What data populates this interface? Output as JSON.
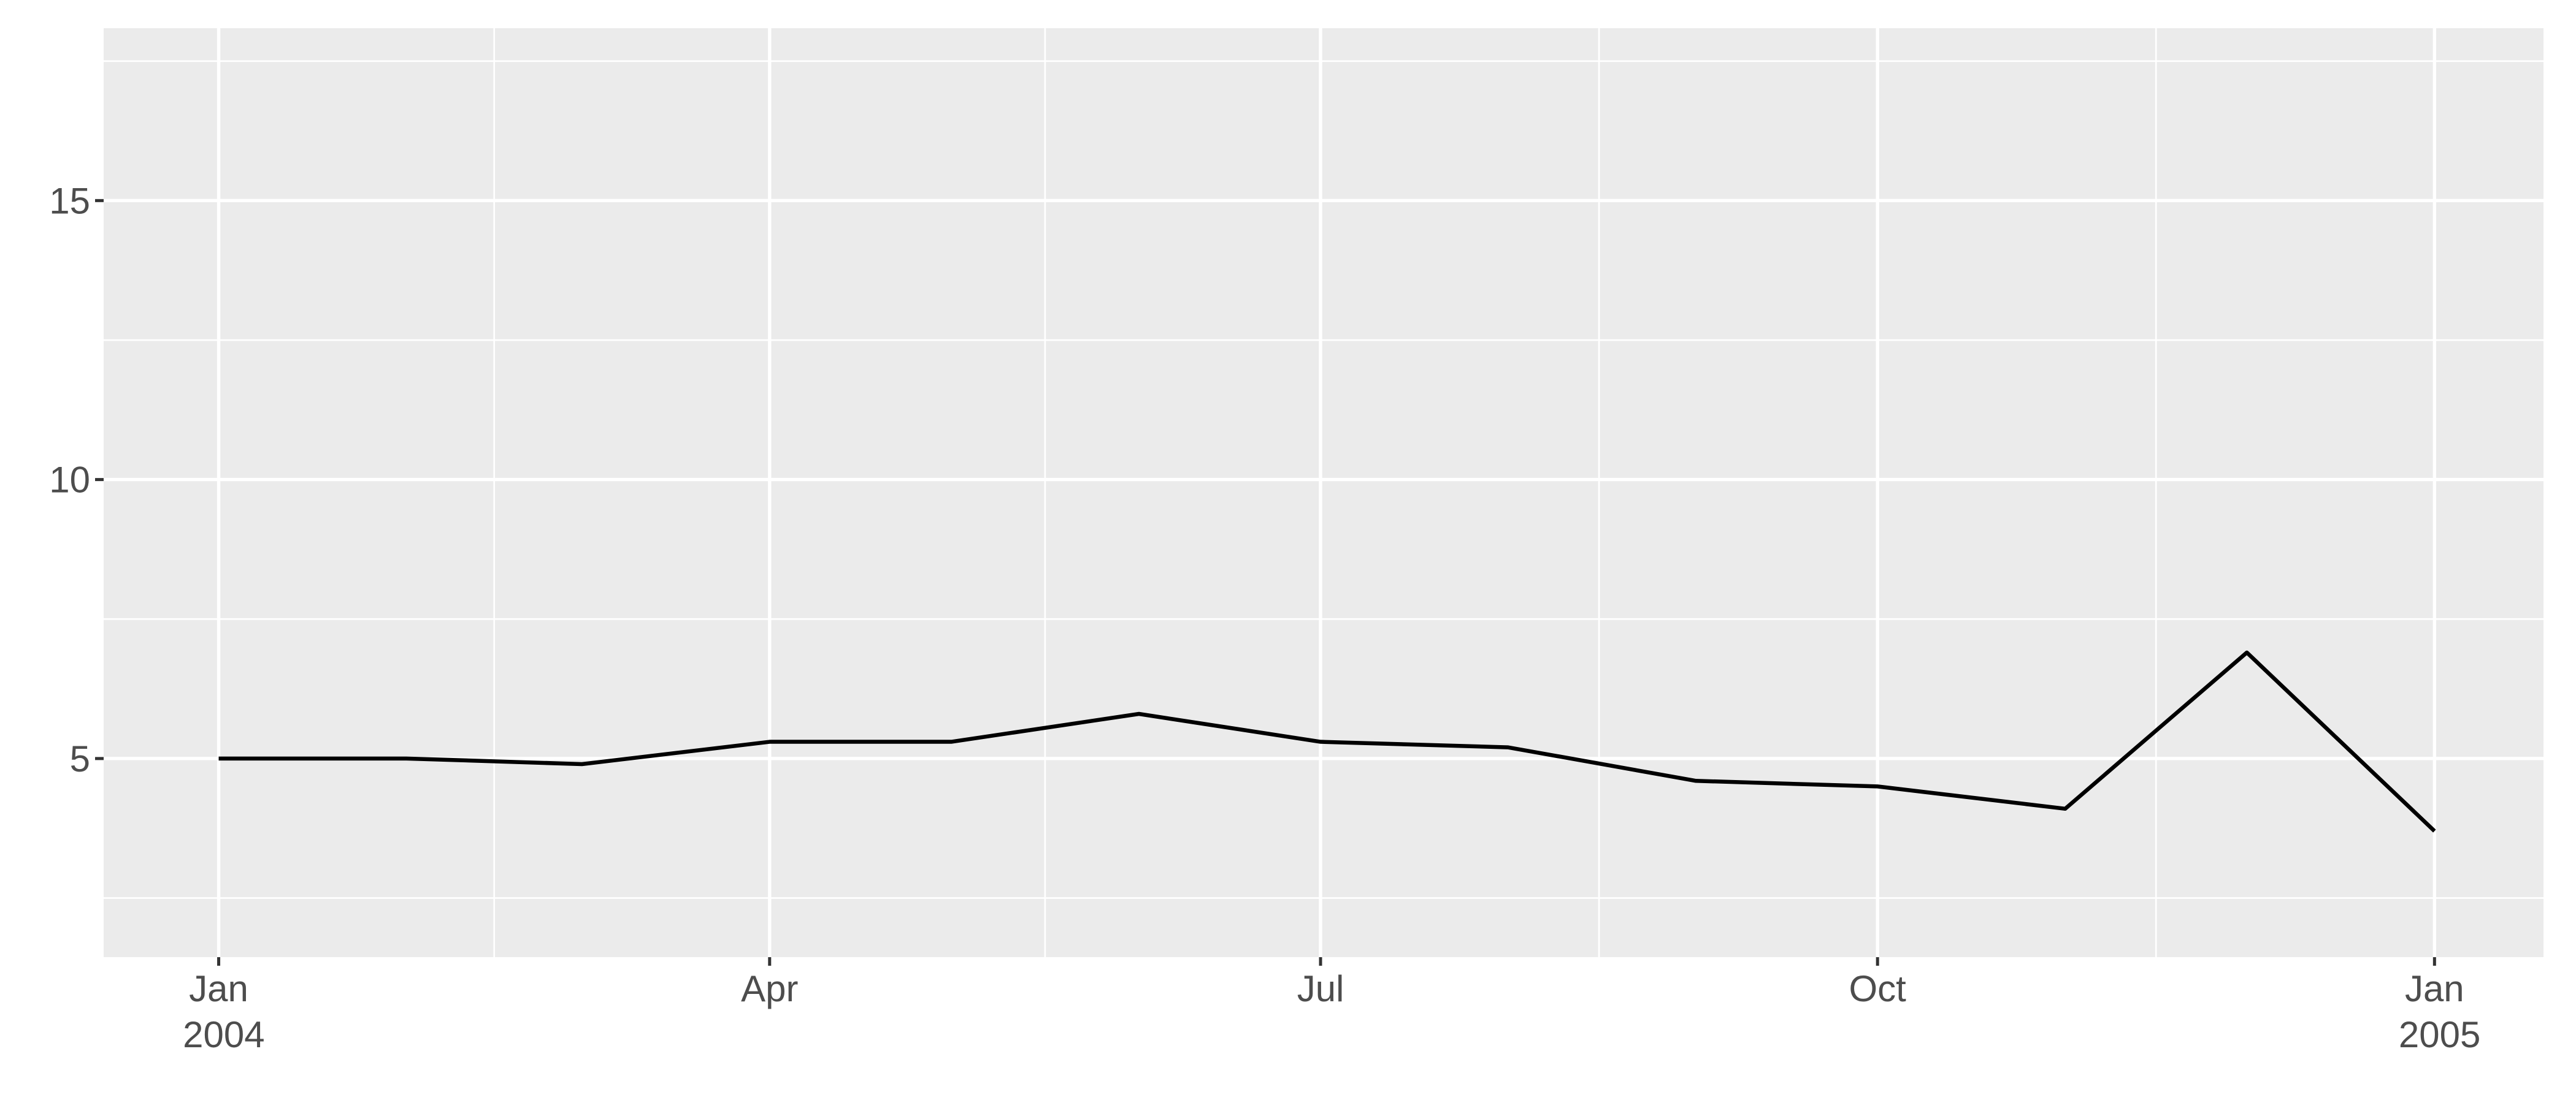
{
  "chart_data": {
    "type": "line",
    "x": [
      "2004-01",
      "2004-02",
      "2004-03",
      "2004-04",
      "2004-05",
      "2004-06",
      "2004-07",
      "2004-08",
      "2004-09",
      "2004-10",
      "2004-11",
      "2004-12",
      "2005-01"
    ],
    "values": [
      5,
      5,
      4.9,
      5.3,
      5.3,
      5.8,
      5.3,
      5.2,
      4.6,
      4.5,
      4.1,
      6.9,
      3.7
    ],
    "color": "#000000",
    "xlim": [
      "2003-12-13",
      "2005-01-19"
    ],
    "xticks": [
      {
        "value": "2004-01",
        "label": "Jan 2004"
      },
      {
        "value": "2004-04",
        "label": "Apr"
      },
      {
        "value": "2004-07",
        "label": "Jul"
      },
      {
        "value": "2004-10",
        "label": "Oct"
      },
      {
        "value": "2005-01",
        "label": "Jan 2005"
      }
    ],
    "ylim": [
      1.44,
      18.09
    ],
    "yticks": [
      5,
      10,
      15
    ],
    "grid": true
  }
}
